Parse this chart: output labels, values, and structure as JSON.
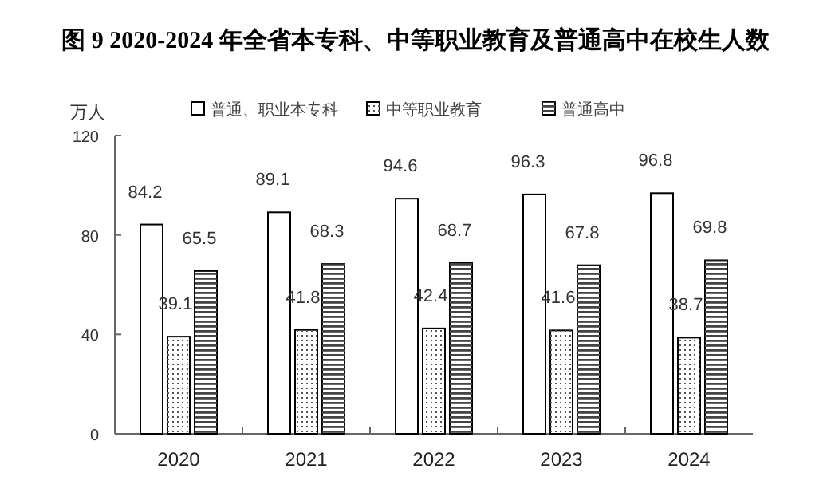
{
  "chart_data": {
    "type": "bar",
    "title": "图 9    2020-2024 年全省本专科、中等职业教育及普通高中在校生人数",
    "ylabel": "万人",
    "categories": [
      "2020",
      "2021",
      "2022",
      "2023",
      "2024"
    ],
    "series": [
      {
        "name": "普通、职业本专科",
        "color": "#ffffff",
        "values": [
          84.2,
          89.1,
          94.6,
          96.3,
          96.8
        ]
      },
      {
        "name": "中等职业教育",
        "color": "#ffffff",
        "values": [
          39.1,
          41.8,
          42.4,
          41.6,
          38.7
        ]
      },
      {
        "name": "普通高中",
        "color": "#ffffff",
        "values": [
          65.5,
          68.3,
          68.7,
          67.8,
          69.8
        ]
      }
    ],
    "ylim": [
      0,
      120
    ],
    "yticks": [
      0,
      40,
      80,
      120
    ],
    "data_labels": true,
    "grid": false,
    "legend": "top"
  }
}
